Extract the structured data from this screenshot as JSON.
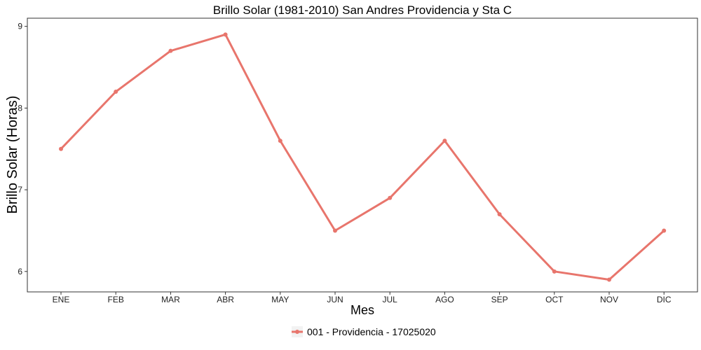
{
  "chart_data": {
    "type": "line",
    "title": "Brillo Solar (1981-2010)  San Andres Providencia y Sta C",
    "xlabel": "Mes",
    "ylabel": "Brillo Solar (Horas)",
    "categories": [
      "ENE",
      "FEB",
      "MAR",
      "ABR",
      "MAY",
      "JUN",
      "JUL",
      "AGO",
      "SEP",
      "OCT",
      "NOV",
      "DIC"
    ],
    "ylim": [
      5.75,
      9.1
    ],
    "yticks": [
      6,
      7,
      8,
      9
    ],
    "grid": false,
    "legend_position": "bottom",
    "series": [
      {
        "name": "001 - Providencia - 17025020",
        "color": "#E8756C",
        "values": [
          7.5,
          8.2,
          8.7,
          8.9,
          7.6,
          6.5,
          6.9,
          7.6,
          6.7,
          6.0,
          5.9,
          6.5
        ]
      }
    ]
  }
}
